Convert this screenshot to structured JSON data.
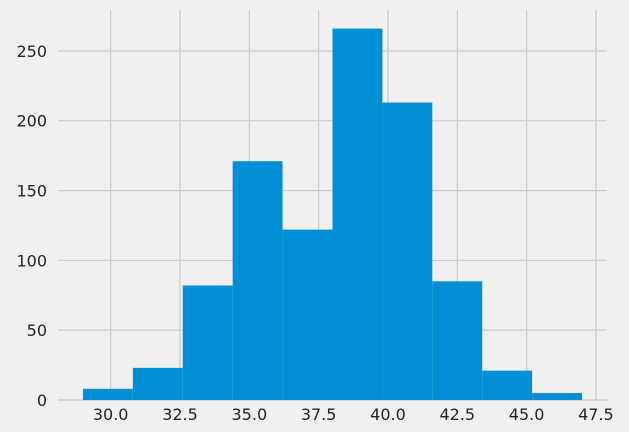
{
  "chart_data": {
    "type": "bar",
    "subtype": "histogram",
    "title": "",
    "xlabel": "",
    "ylabel": "",
    "bin_edges": [
      29.0,
      30.8,
      32.6,
      34.4,
      36.2,
      38.0,
      39.8,
      41.6,
      43.4,
      45.2,
      47.0
    ],
    "values": [
      8,
      23,
      82,
      171,
      122,
      266,
      213,
      85,
      21,
      5
    ],
    "xlim": [
      28.1,
      47.9
    ],
    "ylim": [
      0,
      279.3
    ],
    "x_ticks": [
      30.0,
      32.5,
      35.0,
      37.5,
      40.0,
      42.5,
      45.0,
      47.5
    ],
    "x_tick_labels": [
      "30.0",
      "32.5",
      "35.0",
      "37.5",
      "40.0",
      "42.5",
      "45.0",
      "47.5"
    ],
    "y_ticks": [
      0,
      50,
      100,
      150,
      200,
      250
    ],
    "y_tick_labels": [
      "0",
      "50",
      "100",
      "150",
      "200",
      "250"
    ],
    "grid": true,
    "colors": {
      "bar": "#008fd5",
      "background": "#f0f0f0",
      "grid": "#cbcbcb",
      "text": "#222222"
    }
  }
}
